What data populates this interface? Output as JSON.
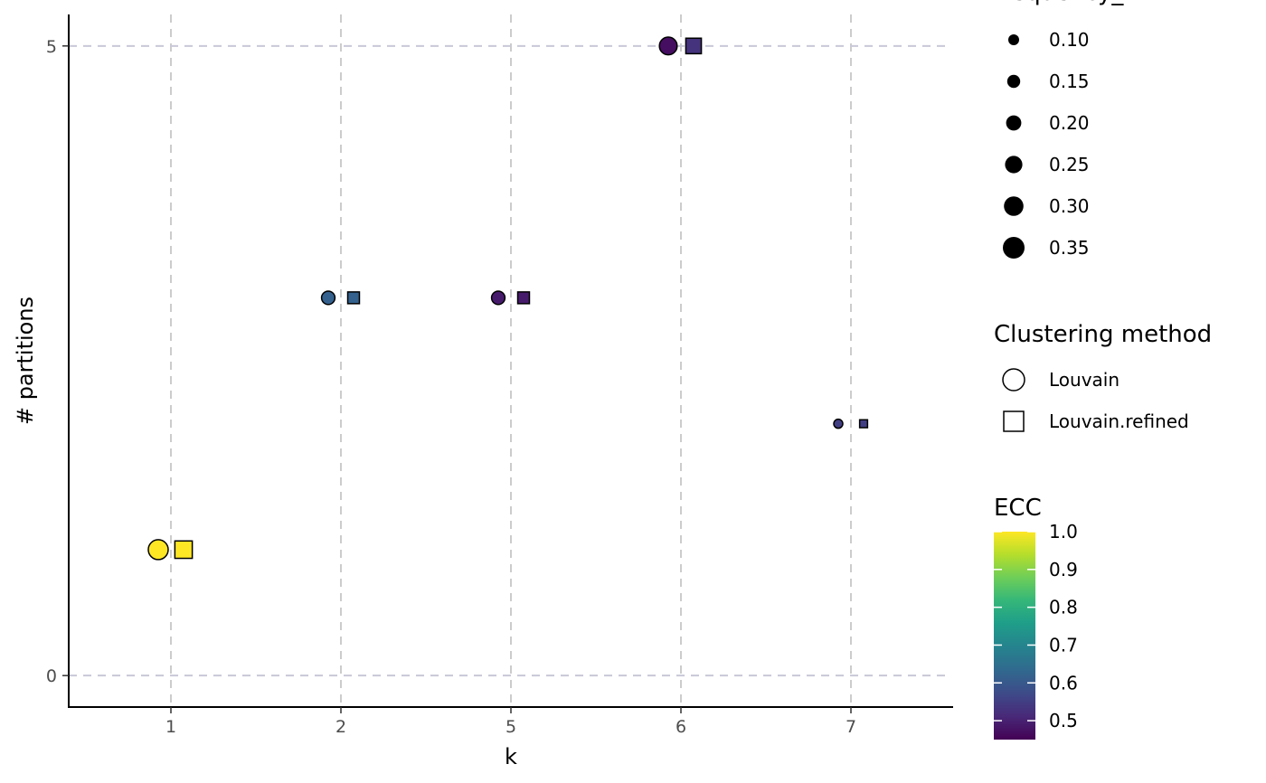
{
  "chart_data": {
    "type": "scatter",
    "title": "",
    "xlabel": "k",
    "ylabel": "# partitions",
    "x_categories": [
      "1",
      "2",
      "5",
      "6",
      "7"
    ],
    "ylim": [
      -0.25,
      5.25
    ],
    "y_ticks": [
      0,
      5
    ],
    "y_tick_labels": [
      "0",
      "5"
    ],
    "grid": "dashed major lines",
    "points": [
      {
        "k": "1",
        "method": "Louvain",
        "partitions": 1,
        "frequency_k": 0.35,
        "ecc": 1.0
      },
      {
        "k": "1",
        "method": "Louvain.refined",
        "partitions": 1,
        "frequency_k": 0.35,
        "ecc": 1.0
      },
      {
        "k": "2",
        "method": "Louvain",
        "partitions": 3,
        "frequency_k": 0.2,
        "ecc": 0.62
      },
      {
        "k": "2",
        "method": "Louvain.refined",
        "partitions": 3,
        "frequency_k": 0.2,
        "ecc": 0.62
      },
      {
        "k": "5",
        "method": "Louvain",
        "partitions": 3,
        "frequency_k": 0.2,
        "ecc": 0.49
      },
      {
        "k": "5",
        "method": "Louvain.refined",
        "partitions": 3,
        "frequency_k": 0.2,
        "ecc": 0.49
      },
      {
        "k": "6",
        "method": "Louvain",
        "partitions": 5,
        "frequency_k": 0.3,
        "ecc": 0.47
      },
      {
        "k": "6",
        "method": "Louvain.refined",
        "partitions": 5,
        "frequency_k": 0.3,
        "ecc": 0.53
      },
      {
        "k": "7",
        "method": "Louvain",
        "partitions": 2,
        "frequency_k": 0.1,
        "ecc": 0.55
      },
      {
        "k": "7",
        "method": "Louvain.refined",
        "partitions": 2,
        "frequency_k": 0.1,
        "ecc": 0.55
      }
    ],
    "legends": {
      "size": {
        "title": "frequency_k",
        "values": [
          0.1,
          0.15,
          0.2,
          0.25,
          0.3,
          0.35
        ],
        "labels": [
          "0.10",
          "0.15",
          "0.20",
          "0.25",
          "0.30",
          "0.35"
        ]
      },
      "shape": {
        "title": "Clustering method",
        "items": [
          {
            "label": "Louvain",
            "shape": "circle"
          },
          {
            "label": "Louvain.refined",
            "shape": "square"
          }
        ]
      },
      "color": {
        "title": "ECC",
        "scale": "viridis",
        "range": [
          0.45,
          1.0
        ],
        "ticks": [
          1.0,
          0.9,
          0.8,
          0.7,
          0.6,
          0.5
        ],
        "tick_labels": [
          "1.0",
          "0.9",
          "0.8",
          "0.7",
          "0.6",
          "0.5"
        ]
      }
    }
  }
}
